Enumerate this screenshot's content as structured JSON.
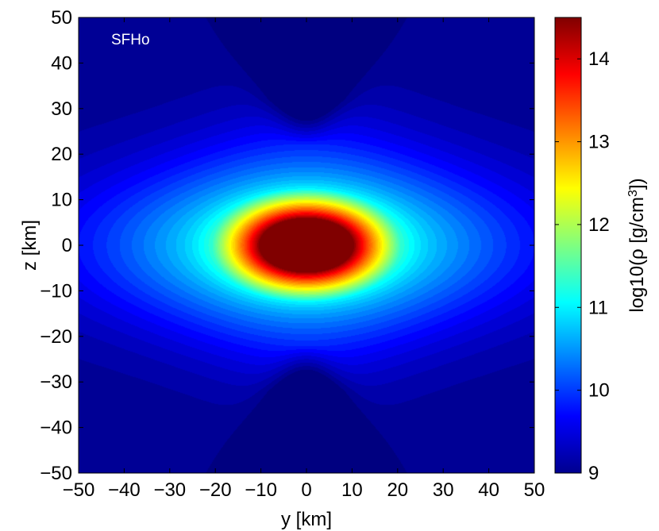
{
  "chart_data": {
    "type": "heatmap",
    "annotation": "SFHo",
    "xlabel": "y [km]",
    "ylabel": "z [km]",
    "xlim": [
      -50,
      50
    ],
    "ylim": [
      -50,
      50
    ],
    "xticks": [
      -50,
      -40,
      -30,
      -20,
      -10,
      0,
      10,
      20,
      30,
      40,
      50
    ],
    "yticks": [
      -50,
      -40,
      -30,
      -20,
      -10,
      0,
      10,
      20,
      30,
      40,
      50
    ],
    "xtick_labels": [
      "−50",
      "−40",
      "−30",
      "−20",
      "−10",
      "0",
      "10",
      "20",
      "30",
      "40",
      "50"
    ],
    "ytick_labels": [
      "−50",
      "−40",
      "−30",
      "−20",
      "−10",
      "0",
      "10",
      "20",
      "30",
      "40",
      "50"
    ],
    "colorbar": {
      "label_prefix": "log10(ρ [g/cm",
      "label_sup": "3",
      "label_suffix": "])",
      "range": [
        9,
        14.5
      ],
      "ticks": [
        9,
        10,
        11,
        12,
        13,
        14
      ],
      "tick_labels": [
        "9",
        "10",
        "11",
        "12",
        "13",
        "14"
      ],
      "colormap": "jet"
    },
    "field_description": {
      "core": {
        "center": [
          0,
          0
        ],
        "half_width_y": 10.5,
        "half_height_z": 6.0,
        "value": 14.5
      },
      "edge_value": 9.0,
      "polar_funnel_min": 9.0
    }
  }
}
